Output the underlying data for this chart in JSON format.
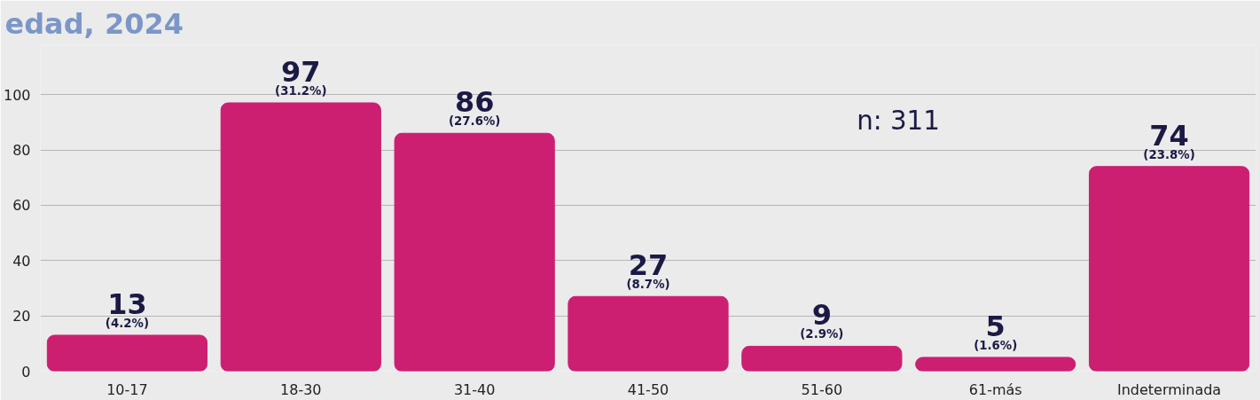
{
  "chart_data": {
    "type": "bar",
    "title": "edad, 2024",
    "categories": [
      "10-17",
      "18-30",
      "31-40",
      "41-50",
      "51-60",
      "61-más",
      "Indeterminada"
    ],
    "values": [
      13,
      97,
      86,
      27,
      9,
      5,
      74
    ],
    "color": "#cc1f72",
    "value_labels": [
      "13\n(4.2%)",
      "97\n(31.2%)",
      "86\n(27.6%)",
      "27\n(8.7%)",
      "9\n(2.9%)",
      "5\n(1.6%)",
      "74\n(23.8%)"
    ],
    "annotations": [
      "n: 311"
    ],
    "ylim": [
      0,
      118
    ],
    "yticks": [
      0,
      20,
      40,
      60,
      80,
      100
    ],
    "grid": "y"
  }
}
